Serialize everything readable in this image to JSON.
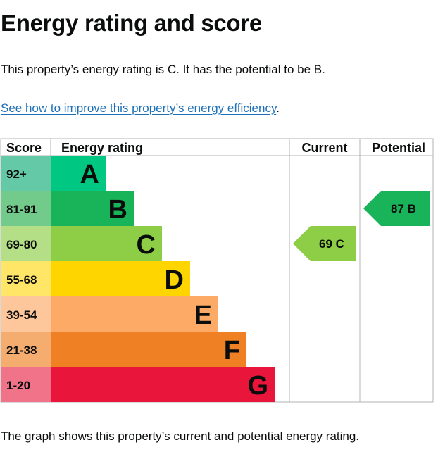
{
  "page": {
    "title": "Energy rating and score",
    "intro": "This property’s energy rating is C. It has the potential to be B.",
    "link_text": "See how to improve this property’s energy efficiency",
    "link_suffix": ".",
    "footer": "The graph shows this property’s current and potential energy rating."
  },
  "chart_data": {
    "type": "bar",
    "headers": {
      "score": "Score",
      "rating": "Energy rating",
      "current": "Current",
      "potential": "Potential"
    },
    "bands": [
      {
        "range": "92+",
        "letter": "A",
        "color": "#00c781",
        "score_color": "#64c9a6"
      },
      {
        "range": "81-91",
        "letter": "B",
        "color": "#19b459",
        "score_color": "#72ca8b"
      },
      {
        "range": "69-80",
        "letter": "C",
        "color": "#8dce46",
        "score_color": "#b4df86"
      },
      {
        "range": "55-68",
        "letter": "D",
        "color": "#ffd500",
        "score_color": "#ffe666"
      },
      {
        "range": "39-54",
        "letter": "E",
        "color": "#fcaa65",
        "score_color": "#fdc79b"
      },
      {
        "range": "21-38",
        "letter": "F",
        "color": "#ef8023",
        "score_color": "#f4ac6f"
      },
      {
        "range": "1-20",
        "letter": "G",
        "color": "#e9153b",
        "score_color": "#f0738a"
      }
    ],
    "current": {
      "score": 69,
      "band": "C",
      "label": "69 C",
      "color": "#8dce46"
    },
    "potential": {
      "score": 87,
      "band": "B",
      "label": "87 B",
      "color": "#19b459"
    }
  }
}
